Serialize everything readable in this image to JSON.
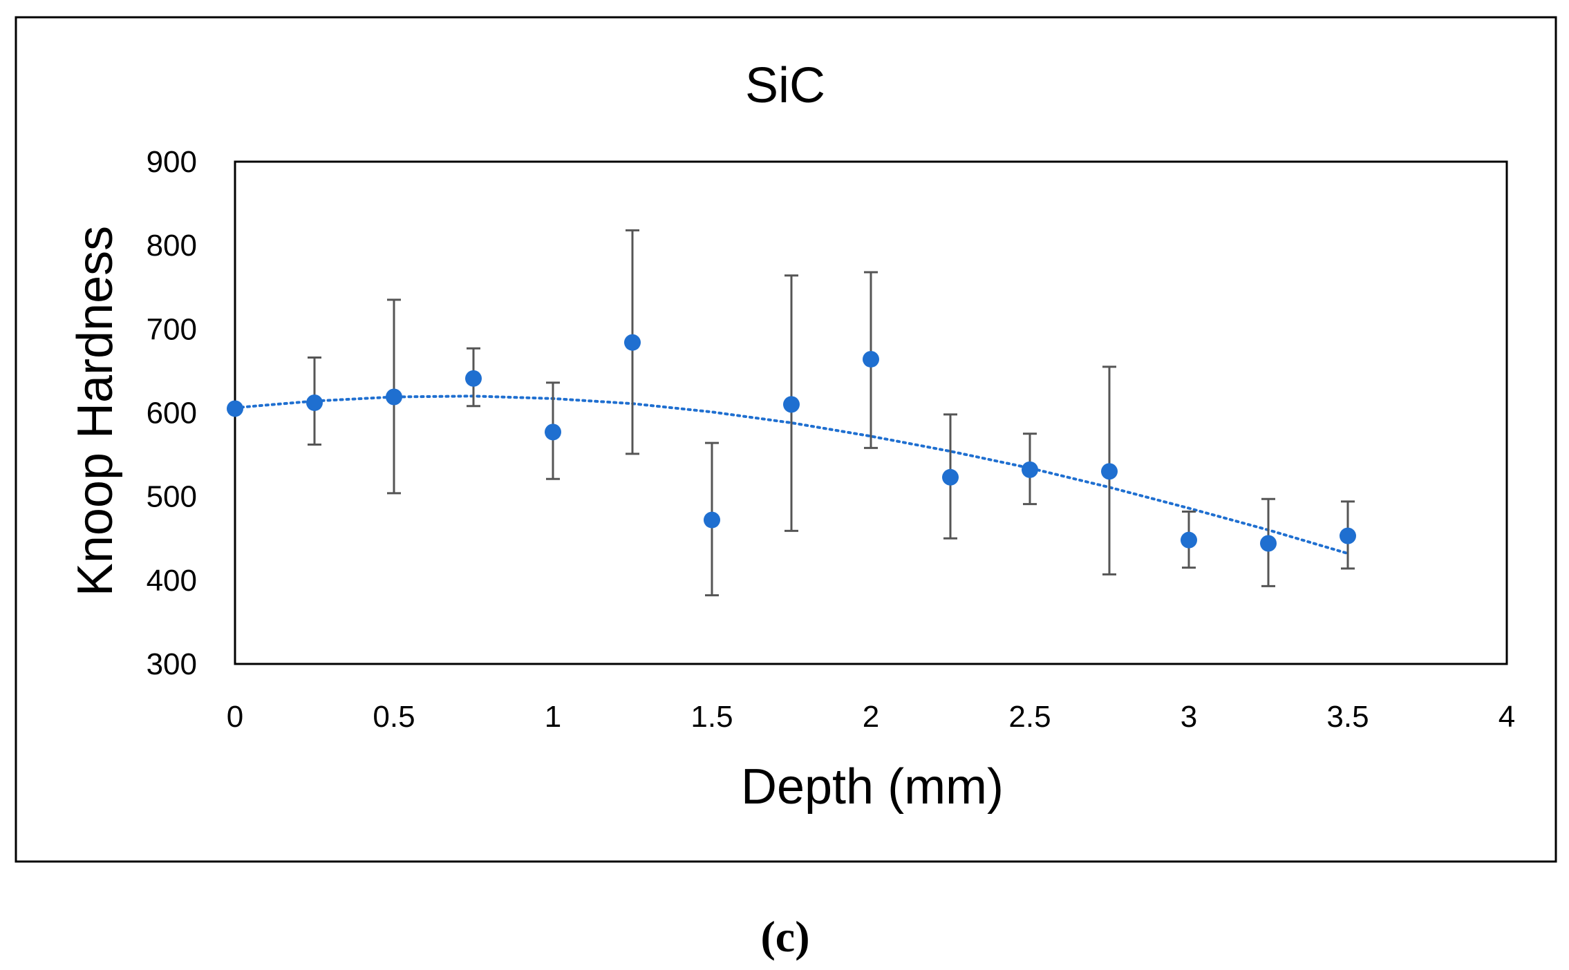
{
  "chart_data": {
    "type": "scatter",
    "title": "SiC",
    "xlabel": "Depth (mm)",
    "ylabel": "Knoop Hardness",
    "xlim": [
      0,
      4
    ],
    "ylim": [
      300,
      900
    ],
    "x_ticks": [
      "0",
      "0.5",
      "1",
      "1.5",
      "2",
      "2.5",
      "3",
      "3.5",
      "4"
    ],
    "y_ticks": [
      "300",
      "400",
      "500",
      "600",
      "700",
      "800",
      "900"
    ],
    "grid": false,
    "series": [
      {
        "name": "Knoop Hardness",
        "color": "#1f6fd0",
        "points": [
          {
            "x": 0.0,
            "y": 605,
            "err_low": null,
            "err_high": null
          },
          {
            "x": 0.25,
            "y": 612,
            "err_low": 562,
            "err_high": 666
          },
          {
            "x": 0.5,
            "y": 619,
            "err_low": 504,
            "err_high": 735
          },
          {
            "x": 0.75,
            "y": 641,
            "err_low": 608,
            "err_high": 677
          },
          {
            "x": 1.0,
            "y": 577,
            "err_low": 521,
            "err_high": 636
          },
          {
            "x": 1.25,
            "y": 684,
            "err_low": 551,
            "err_high": 818
          },
          {
            "x": 1.5,
            "y": 472,
            "err_low": 382,
            "err_high": 564
          },
          {
            "x": 1.75,
            "y": 610,
            "err_low": 459,
            "err_high": 764
          },
          {
            "x": 2.0,
            "y": 664,
            "err_low": 558,
            "err_high": 768
          },
          {
            "x": 2.25,
            "y": 523,
            "err_low": 450,
            "err_high": 598
          },
          {
            "x": 2.5,
            "y": 532,
            "err_low": 491,
            "err_high": 575
          },
          {
            "x": 2.75,
            "y": 530,
            "err_low": 407,
            "err_high": 655
          },
          {
            "x": 3.0,
            "y": 448,
            "err_low": 415,
            "err_high": 482
          },
          {
            "x": 3.25,
            "y": 444,
            "err_low": 393,
            "err_high": 497
          },
          {
            "x": 3.5,
            "y": 453,
            "err_low": 414,
            "err_high": 494
          }
        ]
      }
    ],
    "trendline": {
      "type": "polynomial",
      "style": "dotted",
      "color": "#1f6fd0",
      "x_range": [
        0,
        3.5
      ],
      "points": [
        {
          "x": 0.0,
          "y": 606
        },
        {
          "x": 0.25,
          "y": 614
        },
        {
          "x": 0.5,
          "y": 619
        },
        {
          "x": 0.75,
          "y": 620
        },
        {
          "x": 1.0,
          "y": 617
        },
        {
          "x": 1.25,
          "y": 611
        },
        {
          "x": 1.5,
          "y": 601
        },
        {
          "x": 1.75,
          "y": 588
        },
        {
          "x": 2.0,
          "y": 572
        },
        {
          "x": 2.25,
          "y": 554
        },
        {
          "x": 2.5,
          "y": 534
        },
        {
          "x": 2.75,
          "y": 511
        },
        {
          "x": 3.0,
          "y": 486
        },
        {
          "x": 3.25,
          "y": 460
        },
        {
          "x": 3.5,
          "y": 432
        }
      ]
    }
  },
  "caption": "(c)"
}
